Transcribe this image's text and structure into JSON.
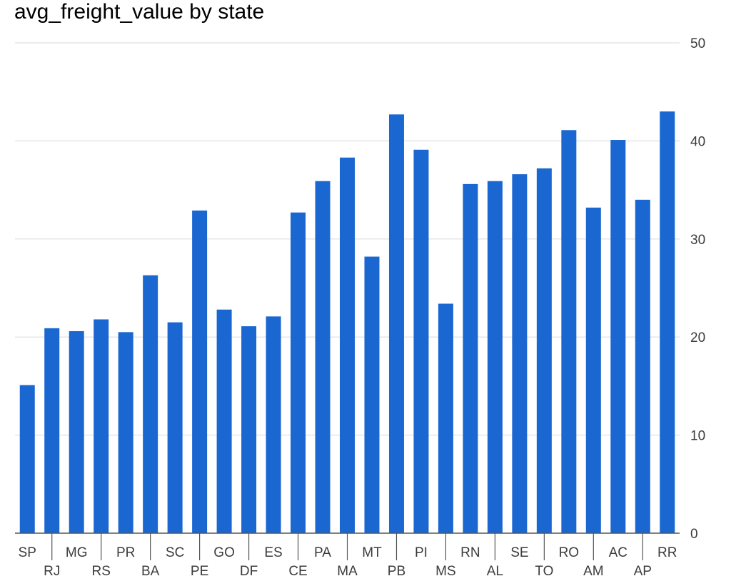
{
  "chart_data": {
    "type": "bar",
    "title": "avg_freight_value by state",
    "xlabel": "",
    "ylabel": "",
    "categories": [
      "SP",
      "RJ",
      "MG",
      "RS",
      "PR",
      "BA",
      "SC",
      "PE",
      "GO",
      "DF",
      "ES",
      "CE",
      "PA",
      "MA",
      "MT",
      "PB",
      "PI",
      "MS",
      "RN",
      "AL",
      "SE",
      "TO",
      "RO",
      "AM",
      "AC",
      "AP",
      "RR"
    ],
    "series": [
      {
        "values": [
          15.1,
          20.9,
          20.6,
          21.8,
          20.5,
          26.3,
          21.5,
          32.9,
          22.8,
          21.1,
          22.1,
          32.7,
          35.9,
          38.3,
          28.2,
          42.7,
          39.1,
          23.4,
          35.6,
          35.9,
          36.6,
          37.2,
          41.1,
          33.2,
          40.1,
          34.0,
          43.0
        ]
      }
    ],
    "ylim": [
      0,
      50
    ],
    "yticks": [
      0,
      10,
      20,
      30,
      40,
      50
    ],
    "y_axis_side": "right",
    "grid": true,
    "colors": {
      "bar": "#1a67d2",
      "grid": "#e6e6e6",
      "axis": "#555555",
      "text": "#3c3c3c"
    }
  }
}
